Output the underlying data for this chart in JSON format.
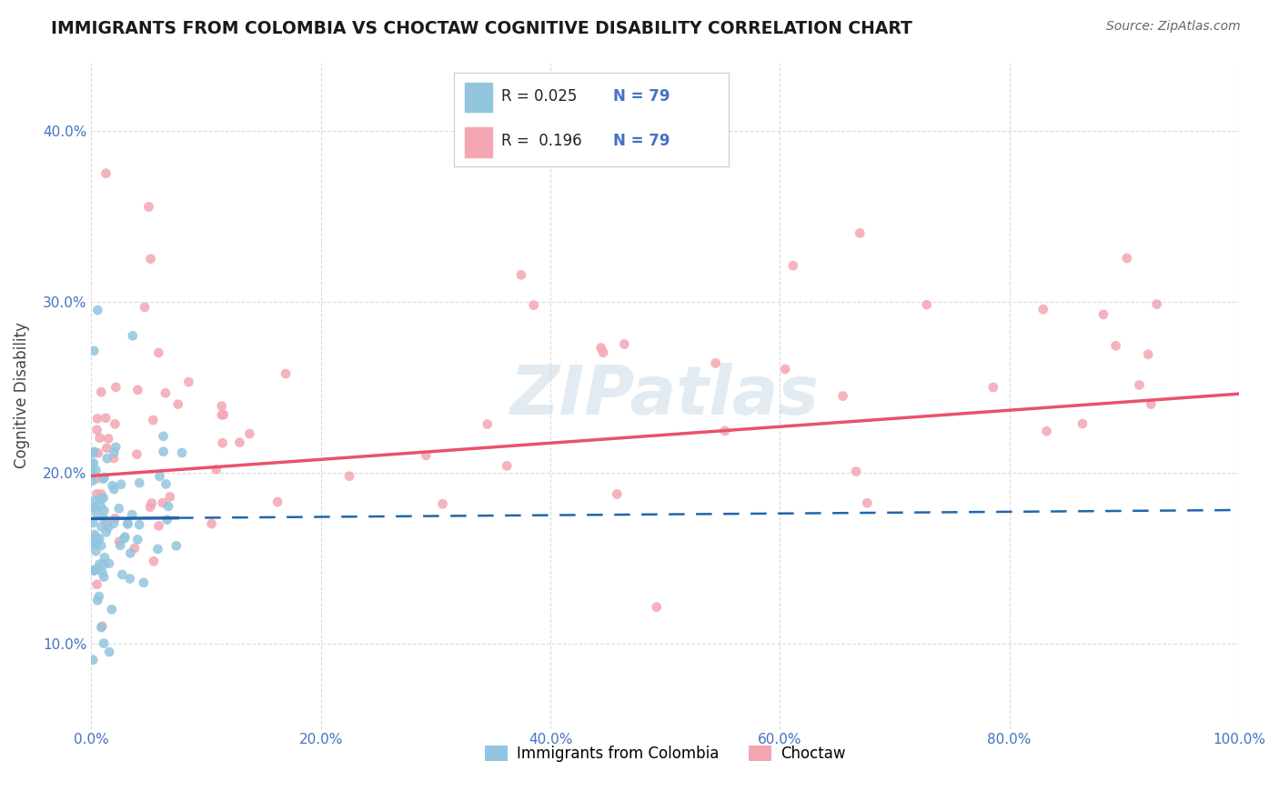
{
  "title": "IMMIGRANTS FROM COLOMBIA VS CHOCTAW COGNITIVE DISABILITY CORRELATION CHART",
  "source": "Source: ZipAtlas.com",
  "ylabel": "Cognitive Disability",
  "xlim": [
    0.0,
    1.0
  ],
  "ylim": [
    0.05,
    0.44
  ],
  "xticks": [
    0.0,
    0.2,
    0.4,
    0.6,
    0.8,
    1.0
  ],
  "xticklabels": [
    "0.0%",
    "20.0%",
    "40.0%",
    "60.0%",
    "80.0%",
    "100.0%"
  ],
  "yticks": [
    0.1,
    0.2,
    0.3,
    0.4
  ],
  "yticklabels": [
    "10.0%",
    "20.0%",
    "30.0%",
    "40.0%"
  ],
  "legend_labels": [
    "Immigrants from Colombia",
    "Choctaw"
  ],
  "r1": 0.025,
  "r2": 0.196,
  "n": 79,
  "color1": "#92c5de",
  "color2": "#f4a6b2",
  "trend1_color": "#2166ac",
  "trend2_color": "#e8536a",
  "watermark": "ZIPatlas",
  "background_color": "#ffffff",
  "grid_color": "#cccccc",
  "tick_color": "#4472c4",
  "title_color": "#1a1a1a",
  "source_color": "#666666"
}
